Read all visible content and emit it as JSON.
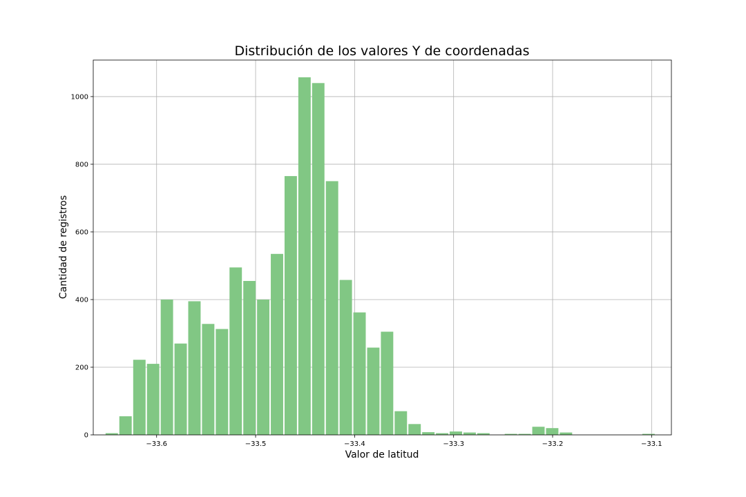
{
  "chart_data": {
    "type": "bar",
    "title": "Distribución de los valores Y de coordenadas",
    "xlabel": "Valor de latitud",
    "ylabel": "Cantidad de registros",
    "xlim": [
      -33.664,
      -33.08
    ],
    "ylim": [
      0,
      1108
    ],
    "grid": true,
    "color": "#81c784",
    "bin_width": 0.0139,
    "xticks": [
      {
        "value": -33.6,
        "label": "−33.6"
      },
      {
        "value": -33.5,
        "label": "−33.5"
      },
      {
        "value": -33.4,
        "label": "−33.4"
      },
      {
        "value": -33.3,
        "label": "−33.3"
      },
      {
        "value": -33.2,
        "label": "−33.2"
      },
      {
        "value": -33.1,
        "label": "−33.1"
      }
    ],
    "yticks": [
      {
        "value": 0,
        "label": "0"
      },
      {
        "value": 200,
        "label": "200"
      },
      {
        "value": 400,
        "label": "400"
      },
      {
        "value": 600,
        "label": "600"
      },
      {
        "value": 800,
        "label": "800"
      },
      {
        "value": 1000,
        "label": "1000"
      }
    ],
    "bins": [
      {
        "x": -33.6453,
        "count": 5
      },
      {
        "x": -33.6314,
        "count": 55
      },
      {
        "x": -33.6174,
        "count": 222
      },
      {
        "x": -33.6035,
        "count": 210
      },
      {
        "x": -33.5896,
        "count": 400
      },
      {
        "x": -33.5757,
        "count": 270
      },
      {
        "x": -33.5618,
        "count": 395
      },
      {
        "x": -33.5479,
        "count": 328
      },
      {
        "x": -33.534,
        "count": 313
      },
      {
        "x": -33.5201,
        "count": 495
      },
      {
        "x": -33.5062,
        "count": 455
      },
      {
        "x": -33.4923,
        "count": 400
      },
      {
        "x": -33.4784,
        "count": 535
      },
      {
        "x": -33.4645,
        "count": 765
      },
      {
        "x": -33.4506,
        "count": 1057
      },
      {
        "x": -33.4367,
        "count": 1040
      },
      {
        "x": -33.4228,
        "count": 750
      },
      {
        "x": -33.4089,
        "count": 458
      },
      {
        "x": -33.395,
        "count": 362
      },
      {
        "x": -33.3811,
        "count": 258
      },
      {
        "x": -33.3672,
        "count": 305
      },
      {
        "x": -33.3533,
        "count": 70
      },
      {
        "x": -33.3394,
        "count": 32
      },
      {
        "x": -33.3255,
        "count": 8
      },
      {
        "x": -33.3116,
        "count": 5
      },
      {
        "x": -33.2977,
        "count": 10
      },
      {
        "x": -33.2838,
        "count": 7
      },
      {
        "x": -33.2699,
        "count": 5
      },
      {
        "x": -33.256,
        "count": 0
      },
      {
        "x": -33.2421,
        "count": 3
      },
      {
        "x": -33.2282,
        "count": 3
      },
      {
        "x": -33.2143,
        "count": 24
      },
      {
        "x": -33.2004,
        "count": 20
      },
      {
        "x": -33.1865,
        "count": 7
      },
      {
        "x": -33.1726,
        "count": 0
      },
      {
        "x": -33.1587,
        "count": 0
      },
      {
        "x": -33.1448,
        "count": 0
      },
      {
        "x": -33.1309,
        "count": 0
      },
      {
        "x": -33.117,
        "count": 0
      },
      {
        "x": -33.1031,
        "count": 3
      }
    ]
  }
}
